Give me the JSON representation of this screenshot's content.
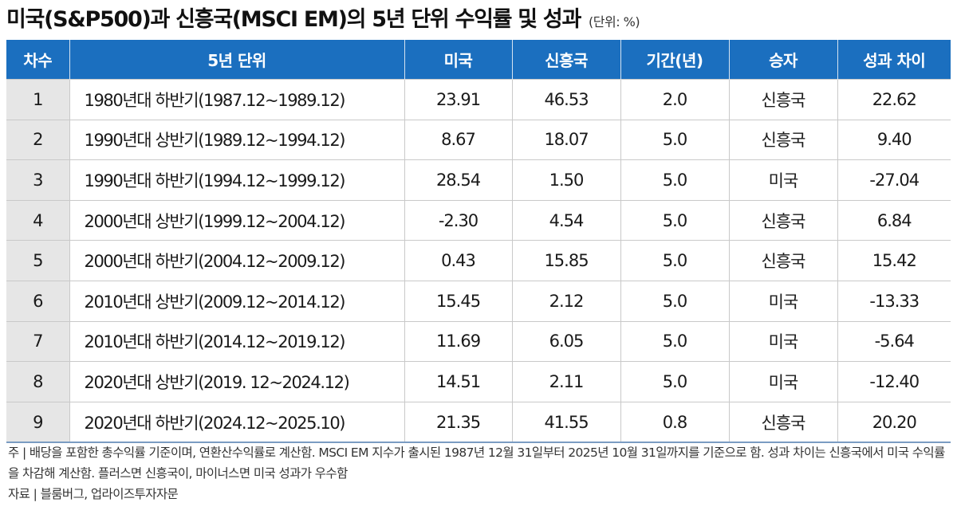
{
  "title": "미국(S&P500)과 신흥국(MSCI EM)의 5년 단위 수익률 및 성과",
  "unit": "(단위: %)",
  "table": {
    "headers": [
      "차수",
      "5년 단위",
      "미국",
      "신흥국",
      "기간(년)",
      "승자",
      "성과 차이"
    ],
    "rows": [
      [
        "1",
        "1980년대 하반기(1987.12~1989.12)",
        "23.91",
        "46.53",
        "2.0",
        "신흥국",
        "22.62"
      ],
      [
        "2",
        "1990년대 상반기(1989.12~1994.12)",
        "8.67",
        "18.07",
        "5.0",
        "신흥국",
        "9.40"
      ],
      [
        "3",
        "1990년대 하반기(1994.12~1999.12)",
        "28.54",
        "1.50",
        "5.0",
        "미국",
        "-27.04"
      ],
      [
        "4",
        "2000년대 상반기(1999.12~2004.12)",
        "-2.30",
        "4.54",
        "5.0",
        "신흥국",
        "6.84"
      ],
      [
        "5",
        "2000년대 하반기(2004.12~2009.12)",
        "0.43",
        "15.85",
        "5.0",
        "신흥국",
        "15.42"
      ],
      [
        "6",
        "2010년대 상반기(2009.12~2014.12)",
        "15.45",
        "2.12",
        "5.0",
        "미국",
        "-13.33"
      ],
      [
        "7",
        "2010년대 하반기(2014.12~2019.12)",
        "11.69",
        "6.05",
        "5.0",
        "미국",
        "-5.64"
      ],
      [
        "8",
        "2020년대 상반기(2019. 12~2024.12)",
        "14.51",
        "2.11",
        "5.0",
        "미국",
        "-12.40"
      ],
      [
        "9",
        "2020년대 하반기(2024.12~2025.10)",
        "21.35",
        "41.55",
        "0.8",
        "신흥국",
        "20.20"
      ]
    ]
  },
  "notes": {
    "note": "주 | 배당을 포함한 총수익률 기준이며, 연환산수익률로 계산함. MSCI EM 지수가 출시된 1987년 12월 31일부터 2025년 10월 31일까지를 기준으로 함. 성과 차이는 신흥국에서 미국 수익률을 차감해 계산함. 플러스면 신흥국이, 마이너스면 미국 성과가 우수함",
    "source": "자료 | 블룸버그, 업라이즈투자자문"
  }
}
